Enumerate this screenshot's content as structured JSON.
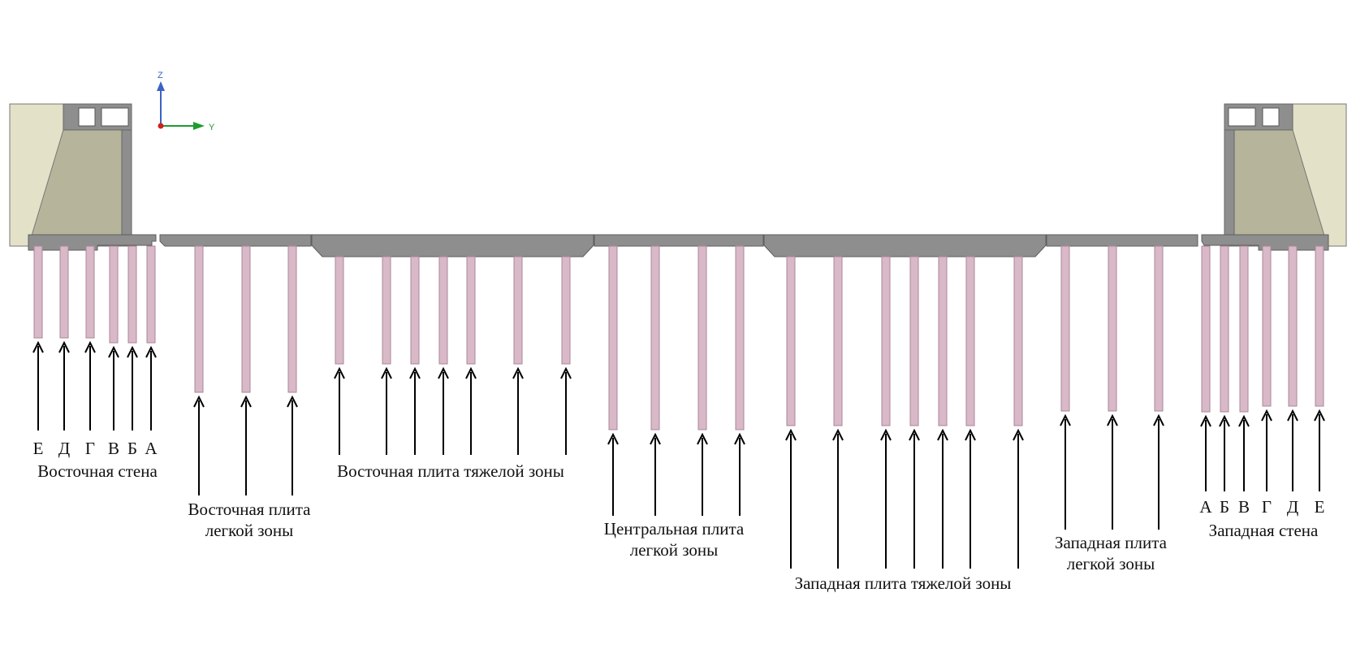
{
  "axis_labels": {
    "z": "Z",
    "y": "Y"
  },
  "labels": {
    "east_wall": "Восточная стена",
    "east_light": [
      "Восточная плита",
      "легкой зоны"
    ],
    "east_heavy": "Восточная плита тяжелой зоны",
    "central_light": [
      "Центральная плита",
      "легкой зоны"
    ],
    "west_heavy": "Западная плита тяжелой зоны",
    "west_light": [
      "Западная плита",
      "легкой зоны"
    ],
    "west_wall": "Западная стена"
  },
  "east_letters": [
    "Е",
    "Д",
    "Г",
    "В",
    "Б",
    "А"
  ],
  "west_letters": [
    "А",
    "Б",
    "В",
    "Г",
    "Д",
    "Е"
  ],
  "colors": {
    "slab": "#8e8e8e",
    "abutment_light": "#e4e1c9",
    "abutment_dark": "#b6b49b",
    "pile": "#d9b8c8",
    "pile_edge": "#a98799",
    "axis_z": "#3b63c4",
    "axis_y": "#1f9c2e",
    "origin": "#d21f1f"
  }
}
